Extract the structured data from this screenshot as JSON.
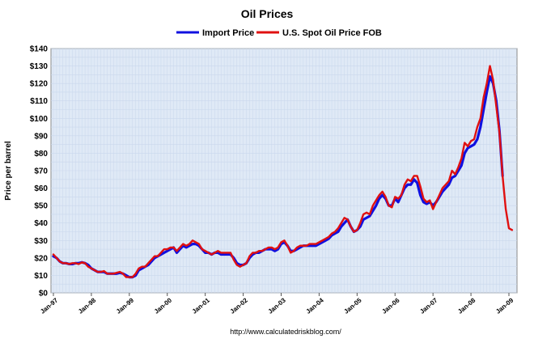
{
  "chart_data": {
    "type": "line",
    "title": "Oil Prices",
    "ylabel": "Price per barrel",
    "xlabel": "",
    "source": "http://www.calculatedriskblog.com/",
    "ylim": [
      0,
      140
    ],
    "y_ticks": [
      "$0",
      "$10",
      "$20",
      "$30",
      "$40",
      "$50",
      "$60",
      "$70",
      "$80",
      "$90",
      "$100",
      "$110",
      "$120",
      "$130",
      "$140"
    ],
    "x_ticks": [
      "Jan-97",
      "Jan-98",
      "Jan-99",
      "Jan-00",
      "Jan-01",
      "Jan-02",
      "Jan-03",
      "Jan-04",
      "Jan-05",
      "Jan-06",
      "Jan-07",
      "Jan-08",
      "Jan-09"
    ],
    "legend_position": "top-center",
    "grid": true,
    "colors": {
      "plot_bg": "#dfe9f6",
      "grid": "#c9d8ec",
      "import": "#1010e0",
      "spot": "#e01010"
    },
    "series": [
      {
        "name": "Import Price",
        "color": "#1010e0",
        "points": [
          [
            0,
            21
          ],
          [
            1,
            20
          ],
          [
            2,
            18
          ],
          [
            3,
            17
          ],
          [
            4,
            17
          ],
          [
            5,
            16.5
          ],
          [
            6,
            16.5
          ],
          [
            7,
            17
          ],
          [
            8,
            17
          ],
          [
            9,
            17.5
          ],
          [
            10,
            17
          ],
          [
            11,
            16
          ],
          [
            12,
            14
          ],
          [
            13,
            13
          ],
          [
            14,
            12
          ],
          [
            15,
            12
          ],
          [
            16,
            12
          ],
          [
            17,
            11
          ],
          [
            18,
            11
          ],
          [
            19,
            11
          ],
          [
            20,
            11
          ],
          [
            21,
            11.5
          ],
          [
            22,
            11
          ],
          [
            23,
            10
          ],
          [
            24,
            9
          ],
          [
            25,
            9
          ],
          [
            26,
            10
          ],
          [
            27,
            13
          ],
          [
            28,
            14
          ],
          [
            29,
            15
          ],
          [
            30,
            16
          ],
          [
            31,
            18
          ],
          [
            32,
            20
          ],
          [
            33,
            21
          ],
          [
            34,
            22
          ],
          [
            35,
            23
          ],
          [
            36,
            24
          ],
          [
            37,
            25
          ],
          [
            38,
            26
          ],
          [
            39,
            23
          ],
          [
            40,
            25
          ],
          [
            41,
            27
          ],
          [
            42,
            26
          ],
          [
            43,
            27
          ],
          [
            44,
            28
          ],
          [
            45,
            28
          ],
          [
            46,
            27
          ],
          [
            47,
            25
          ],
          [
            48,
            23
          ],
          [
            49,
            23
          ],
          [
            50,
            22
          ],
          [
            51,
            23
          ],
          [
            52,
            23
          ],
          [
            53,
            22
          ],
          [
            54,
            22
          ],
          [
            55,
            22
          ],
          [
            56,
            22
          ],
          [
            57,
            20
          ],
          [
            58,
            17
          ],
          [
            59,
            16
          ],
          [
            60,
            16
          ],
          [
            61,
            17
          ],
          [
            62,
            20
          ],
          [
            63,
            22
          ],
          [
            64,
            23
          ],
          [
            65,
            23
          ],
          [
            66,
            24
          ],
          [
            67,
            25
          ],
          [
            68,
            25
          ],
          [
            69,
            25
          ],
          [
            70,
            24
          ],
          [
            71,
            25
          ],
          [
            72,
            28
          ],
          [
            73,
            29
          ],
          [
            74,
            27
          ],
          [
            75,
            24
          ],
          [
            76,
            24
          ],
          [
            77,
            25
          ],
          [
            78,
            26
          ],
          [
            79,
            27
          ],
          [
            80,
            27
          ],
          [
            81,
            27
          ],
          [
            82,
            27
          ],
          [
            83,
            27
          ],
          [
            84,
            28
          ],
          [
            85,
            29
          ],
          [
            86,
            30
          ],
          [
            87,
            31
          ],
          [
            88,
            33
          ],
          [
            89,
            34
          ],
          [
            90,
            35
          ],
          [
            91,
            38
          ],
          [
            92,
            40
          ],
          [
            93,
            42
          ],
          [
            94,
            38
          ],
          [
            95,
            35
          ],
          [
            96,
            36
          ],
          [
            97,
            38
          ],
          [
            98,
            42
          ],
          [
            99,
            43
          ],
          [
            100,
            44
          ],
          [
            101,
            47
          ],
          [
            102,
            50
          ],
          [
            103,
            54
          ],
          [
            104,
            56
          ],
          [
            105,
            54
          ],
          [
            106,
            50
          ],
          [
            107,
            50
          ],
          [
            108,
            54
          ],
          [
            109,
            52
          ],
          [
            110,
            56
          ],
          [
            111,
            60
          ],
          [
            112,
            62
          ],
          [
            113,
            62
          ],
          [
            114,
            65
          ],
          [
            115,
            63
          ],
          [
            116,
            56
          ],
          [
            117,
            52
          ],
          [
            118,
            51
          ],
          [
            119,
            52
          ],
          [
            120,
            50
          ],
          [
            121,
            52
          ],
          [
            122,
            55
          ],
          [
            123,
            58
          ],
          [
            124,
            60
          ],
          [
            125,
            62
          ],
          [
            126,
            66
          ],
          [
            127,
            67
          ],
          [
            128,
            70
          ],
          [
            129,
            73
          ],
          [
            130,
            80
          ],
          [
            131,
            83
          ],
          [
            132,
            84
          ],
          [
            133,
            85
          ],
          [
            134,
            88
          ],
          [
            135,
            95
          ],
          [
            136,
            105
          ],
          [
            137,
            115
          ],
          [
            138,
            124
          ],
          [
            139,
            120
          ],
          [
            140,
            110
          ],
          [
            141,
            93
          ],
          [
            142,
            67
          ]
        ]
      },
      {
        "name": "U.S. Spot Oil Price FOB",
        "color": "#e01010",
        "points": [
          [
            0,
            22
          ],
          [
            1,
            20
          ],
          [
            2,
            18
          ],
          [
            3,
            17
          ],
          [
            4,
            17
          ],
          [
            5,
            16.5
          ],
          [
            6,
            17
          ],
          [
            7,
            17
          ],
          [
            8,
            16.5
          ],
          [
            9,
            17.5
          ],
          [
            10,
            17
          ],
          [
            11,
            15
          ],
          [
            12,
            14
          ],
          [
            13,
            13
          ],
          [
            14,
            12
          ],
          [
            15,
            12
          ],
          [
            16,
            12.5
          ],
          [
            17,
            11
          ],
          [
            18,
            11
          ],
          [
            19,
            11
          ],
          [
            20,
            11.5
          ],
          [
            21,
            12
          ],
          [
            22,
            11
          ],
          [
            23,
            9
          ],
          [
            24,
            9
          ],
          [
            25,
            9
          ],
          [
            26,
            11
          ],
          [
            27,
            14
          ],
          [
            28,
            15
          ],
          [
            29,
            15
          ],
          [
            30,
            17
          ],
          [
            31,
            19
          ],
          [
            32,
            21
          ],
          [
            33,
            21
          ],
          [
            34,
            23
          ],
          [
            35,
            25
          ],
          [
            36,
            25
          ],
          [
            37,
            26
          ],
          [
            38,
            26
          ],
          [
            39,
            24
          ],
          [
            40,
            26
          ],
          [
            41,
            28
          ],
          [
            42,
            27
          ],
          [
            43,
            28
          ],
          [
            44,
            30
          ],
          [
            45,
            29
          ],
          [
            46,
            28
          ],
          [
            47,
            25
          ],
          [
            48,
            24
          ],
          [
            49,
            23
          ],
          [
            50,
            22
          ],
          [
            51,
            23
          ],
          [
            52,
            24
          ],
          [
            53,
            23
          ],
          [
            54,
            23
          ],
          [
            55,
            23
          ],
          [
            56,
            23
          ],
          [
            57,
            19
          ],
          [
            58,
            16
          ],
          [
            59,
            15
          ],
          [
            60,
            16
          ],
          [
            61,
            17
          ],
          [
            62,
            21
          ],
          [
            63,
            23
          ],
          [
            64,
            23
          ],
          [
            65,
            24
          ],
          [
            66,
            24
          ],
          [
            67,
            25
          ],
          [
            68,
            26
          ],
          [
            69,
            26
          ],
          [
            70,
            25
          ],
          [
            71,
            26
          ],
          [
            72,
            29
          ],
          [
            73,
            30
          ],
          [
            74,
            27
          ],
          [
            75,
            23
          ],
          [
            76,
            24
          ],
          [
            77,
            26
          ],
          [
            78,
            27
          ],
          [
            79,
            27
          ],
          [
            80,
            27
          ],
          [
            81,
            28
          ],
          [
            82,
            28
          ],
          [
            83,
            28
          ],
          [
            84,
            29
          ],
          [
            85,
            30
          ],
          [
            86,
            31
          ],
          [
            87,
            32
          ],
          [
            88,
            34
          ],
          [
            89,
            35
          ],
          [
            90,
            37
          ],
          [
            91,
            40
          ],
          [
            92,
            43
          ],
          [
            93,
            42
          ],
          [
            94,
            38
          ],
          [
            95,
            35
          ],
          [
            96,
            36
          ],
          [
            97,
            40
          ],
          [
            98,
            45
          ],
          [
            99,
            46
          ],
          [
            100,
            45
          ],
          [
            101,
            50
          ],
          [
            102,
            53
          ],
          [
            103,
            56
          ],
          [
            104,
            58
          ],
          [
            105,
            55
          ],
          [
            106,
            50
          ],
          [
            107,
            49
          ],
          [
            108,
            55
          ],
          [
            109,
            54
          ],
          [
            110,
            56
          ],
          [
            111,
            62
          ],
          [
            112,
            65
          ],
          [
            113,
            64
          ],
          [
            114,
            67
          ],
          [
            115,
            67
          ],
          [
            116,
            61
          ],
          [
            117,
            54
          ],
          [
            118,
            52
          ],
          [
            119,
            53
          ],
          [
            120,
            48
          ],
          [
            121,
            52
          ],
          [
            122,
            56
          ],
          [
            123,
            60
          ],
          [
            124,
            62
          ],
          [
            125,
            64
          ],
          [
            126,
            70
          ],
          [
            127,
            68
          ],
          [
            128,
            72
          ],
          [
            129,
            77
          ],
          [
            130,
            86
          ],
          [
            131,
            84
          ],
          [
            132,
            87
          ],
          [
            133,
            88
          ],
          [
            134,
            95
          ],
          [
            135,
            100
          ],
          [
            136,
            112
          ],
          [
            137,
            120
          ],
          [
            138,
            130
          ],
          [
            139,
            122
          ],
          [
            140,
            107
          ],
          [
            141,
            92
          ],
          [
            142,
            67
          ],
          [
            143,
            48
          ],
          [
            144,
            37
          ],
          [
            145,
            36
          ]
        ]
      }
    ]
  }
}
